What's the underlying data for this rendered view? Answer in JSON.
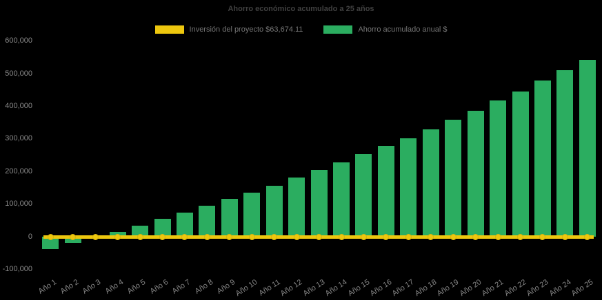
{
  "chart_data": {
    "type": "bar",
    "title": "Ahorro económico acumulado a 25 años",
    "background_color": "#000000",
    "grid": "off",
    "legend_position": "top",
    "xlabel": "",
    "ylabel": "",
    "ylim": [
      -100000,
      600000
    ],
    "ytick_step": 100000,
    "ytick_labels": [
      "600,000",
      "500,000",
      "400,000",
      "300,000",
      "200,000",
      "100,000",
      "0",
      "-100,000"
    ],
    "categories": [
      "Año 1",
      "Año 2",
      "Año 3",
      "Año 4",
      "Año 5",
      "Año 6",
      "Año 7",
      "Año 8",
      "Año 9",
      "Año 10",
      "Año 11",
      "Año 12",
      "Año 13",
      "Año 14",
      "Año 15",
      "Año 16",
      "Año 17",
      "Año 18",
      "Año 19",
      "Año 20",
      "Año 21",
      "Año 22",
      "Año 23",
      "Año 24",
      "Año 25"
    ],
    "series": [
      {
        "name": "Inversión del proyecto $63,674.11",
        "type": "line",
        "color": "#EDC70E",
        "marker": "circle",
        "investment_value_shown_in_label": 63674.11,
        "rendered_constant_value": 0
      },
      {
        "name": "Ahorro acumulado anual $",
        "type": "bar",
        "color": "#2BAD60",
        "values": [
          -37000,
          -19000,
          2000,
          16000,
          34000,
          55000,
          74000,
          95000,
          116000,
          135000,
          156000,
          181000,
          205000,
          229000,
          253000,
          278000,
          302000,
          330000,
          358000,
          386000,
          418000,
          446000,
          479000,
          511000,
          542000
        ]
      }
    ],
    "text_colors": {
      "title": "#414141",
      "legend": "#757575",
      "ticks": "#8A8A8A"
    }
  }
}
